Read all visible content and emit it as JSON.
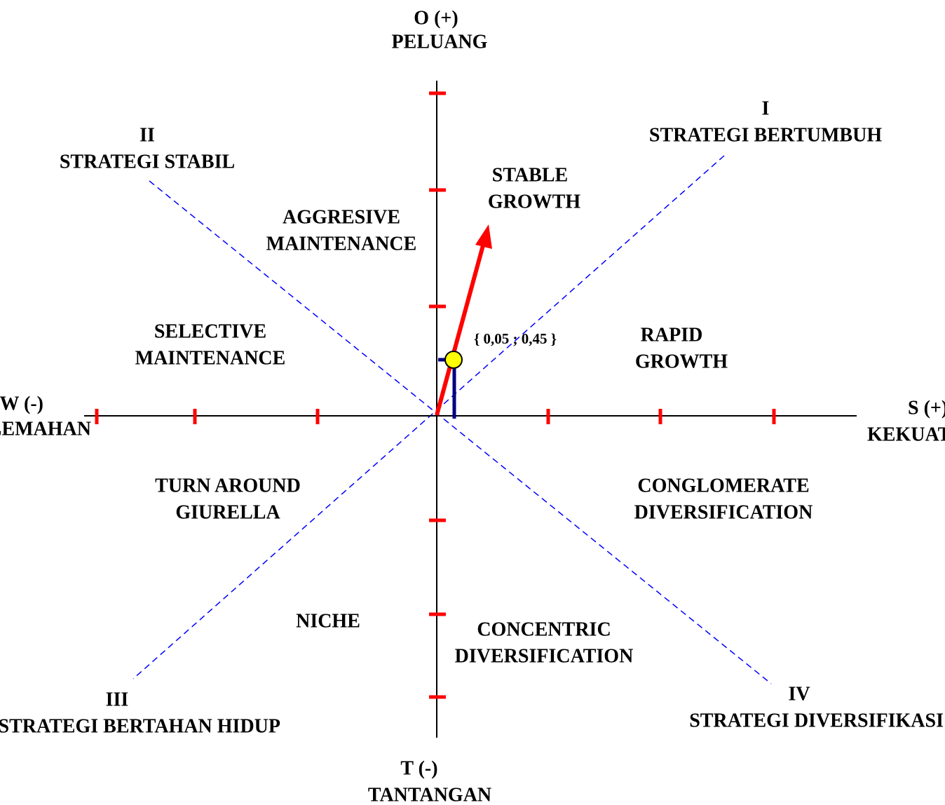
{
  "axes": {
    "top": {
      "code": "O (+)",
      "name": "PELUANG"
    },
    "bottom": {
      "code": "T (-)",
      "name": "TANTANGAN"
    },
    "left": {
      "code": "W (-)",
      "name": "KELEMAHAN"
    },
    "right": {
      "code": "S (+)",
      "name": "KEKUATAN"
    }
  },
  "quadrants": [
    {
      "number": "I",
      "name": "STRATEGI BERTUMBUH"
    },
    {
      "number": "II",
      "name": "STRATEGI STABIL"
    },
    {
      "number": "III",
      "name": "STRATEGI BERTAHAN HIDUP"
    },
    {
      "number": "IV",
      "name": "STRATEGI DIVERSIFIKASI"
    }
  ],
  "zones": [
    [
      "STABLE",
      "GROWTH"
    ],
    [
      "AGGRESIVE",
      "MAINTENANCE"
    ],
    [
      "SELECTIVE",
      "MAINTENANCE"
    ],
    [
      "RAPID",
      "GROWTH"
    ],
    [
      "TURN AROUND",
      "GIURELLA"
    ],
    [
      "CONGLOMERATE",
      "DIVERSIFICATION"
    ],
    [
      "NICHE"
    ],
    [
      "CONCENTRIC",
      "DIVERSIFICATION"
    ]
  ],
  "point_label": "{ 0,05 ; 0,45 }"
}
